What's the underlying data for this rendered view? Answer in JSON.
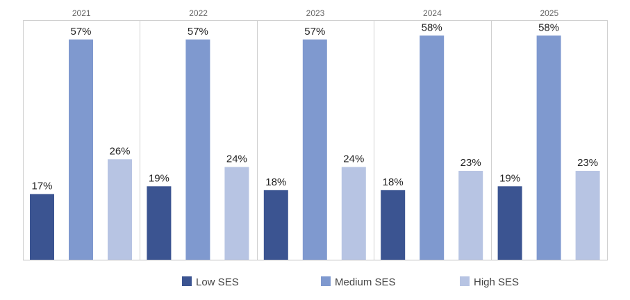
{
  "chart_data": {
    "type": "bar",
    "categories": [
      "2021",
      "2022",
      "2023",
      "2024",
      "2025"
    ],
    "series": [
      {
        "name": "Low SES",
        "color": "#3b5491",
        "values": [
          17,
          19,
          18,
          18,
          19
        ],
        "labels": [
          "17%",
          "19%",
          "18%",
          "18%",
          "19%"
        ]
      },
      {
        "name": "Medium SES",
        "color": "#7f99cf",
        "values": [
          57,
          57,
          57,
          58,
          58
        ],
        "labels": [
          "57%",
          "57%",
          "57%",
          "58%",
          "58%"
        ]
      },
      {
        "name": "High SES",
        "color": "#b7c4e3",
        "values": [
          26,
          24,
          24,
          23,
          23
        ],
        "labels": [
          "26%",
          "24%",
          "24%",
          "23%",
          "23%"
        ]
      }
    ],
    "ylim": [
      0,
      62
    ],
    "grid": false,
    "legend_position": "bottom",
    "value_format": "percent"
  }
}
